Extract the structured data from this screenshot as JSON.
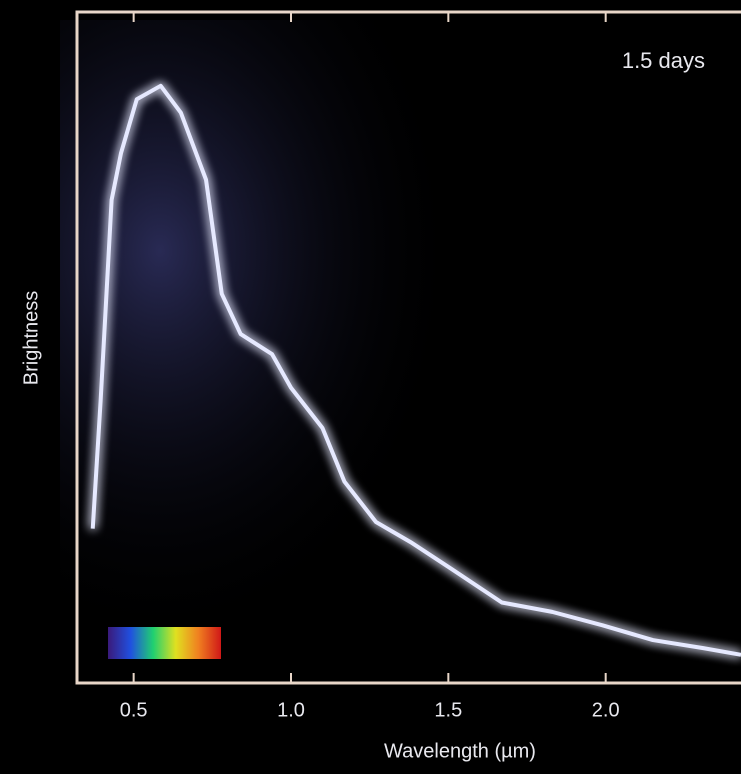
{
  "chart_data": {
    "type": "line",
    "title": "1.5 days",
    "x_label": "Wavelength (µm)",
    "y_label": "Brightness",
    "x": [
      0.37,
      0.395,
      0.43,
      0.46,
      0.51,
      0.586,
      0.65,
      0.73,
      0.78,
      0.84,
      0.94,
      1.0,
      1.1,
      1.17,
      1.27,
      1.38,
      1.51,
      1.67,
      1.83,
      1.99,
      2.15,
      2.31,
      2.43
    ],
    "values": [
      23,
      42,
      72,
      79,
      87,
      89,
      85,
      75,
      58,
      52,
      49,
      44,
      38,
      30,
      24,
      21,
      17,
      12,
      10.6,
      8.6,
      6.4,
      5.2,
      4.2
    ],
    "color": "#e6e9ff",
    "xlim": [
      0.32,
      2.43
    ],
    "ylim": [
      0,
      100
    ],
    "xticks": [
      0.5,
      {
        "value": 1.0,
        "label": "1.0"
      },
      1.5,
      {
        "value": 2.0,
        "label": "2.0"
      }
    ]
  }
}
